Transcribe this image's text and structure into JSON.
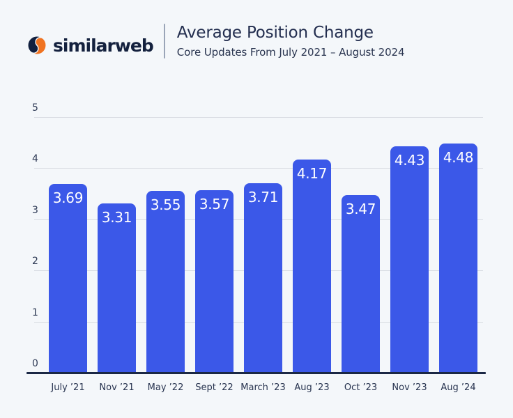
{
  "header": {
    "brand": {
      "name": "similarweb",
      "icon": "similarweb-swirl-icon",
      "icon_navy": "#11203F",
      "icon_orange": "#F07321"
    },
    "title": "Average Position Change",
    "subtitle": "Core Updates From July 2021 – August 2024"
  },
  "chart_data": {
    "type": "bar",
    "title": "Average Position Change",
    "subtitle": "Core Updates From July 2021 – August 2024",
    "categories": [
      "July ’21",
      "Nov ’21",
      "May ’22",
      "Sept ’22",
      "March ’23",
      "Aug ’23",
      "Oct ’23",
      "Nov ’23",
      "Aug ’24"
    ],
    "values": [
      3.69,
      3.31,
      3.55,
      3.57,
      3.71,
      4.17,
      3.47,
      4.43,
      4.48
    ],
    "value_labels": [
      "3.69",
      "3.31",
      "3.55",
      "3.57",
      "3.71",
      "4.17",
      "3.47",
      "4.43",
      "4.48"
    ],
    "xlabel": "",
    "ylabel": "",
    "ylim": [
      0,
      5
    ],
    "yticks": [
      0,
      1,
      2,
      3,
      4,
      5
    ],
    "grid": true,
    "legend": false,
    "bar_color": "#3B58E8",
    "data_label_color": "#FFFFFF",
    "data_label_position": "inside-top"
  },
  "colors": {
    "background": "#F4F7FA",
    "bar": "#3B58E8",
    "axis_line": "#1B2845",
    "gridline": "#D7DBE1",
    "tick_text": "#2E3A55",
    "title_text": "#232E4F",
    "brand_navy": "#14213E",
    "brand_orange": "#F07321",
    "divider": "#9AA5B8"
  }
}
